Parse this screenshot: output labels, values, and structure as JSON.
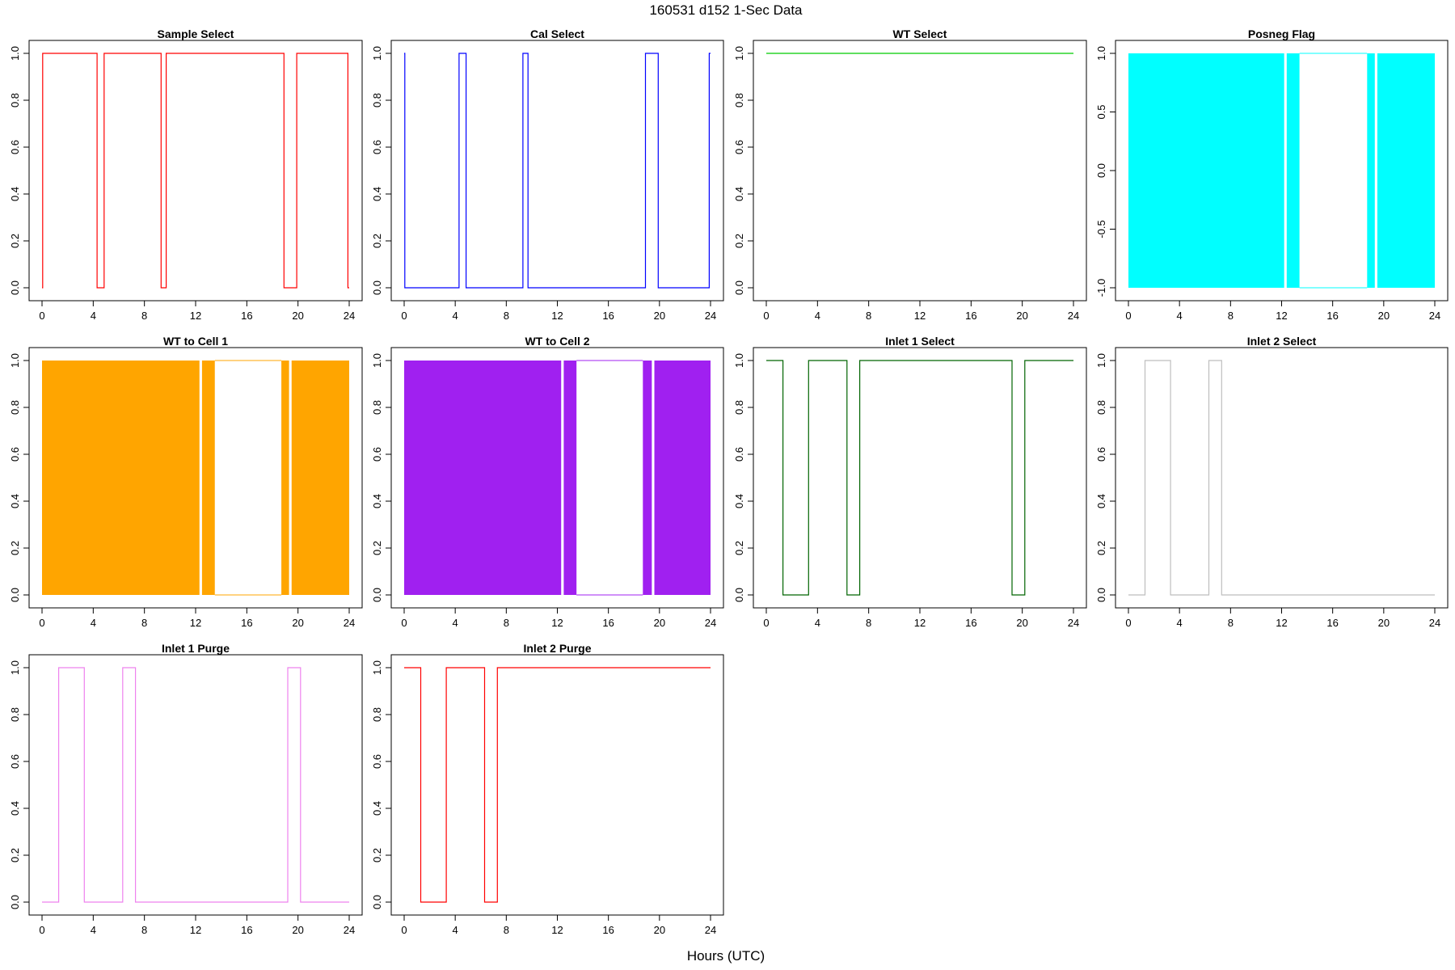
{
  "figure": {
    "title": "160531   d152   1-Sec Data",
    "xlabel": "Hours (UTC)"
  },
  "chart_data": [
    {
      "type": "line",
      "title": "Sample Select",
      "color": "#ff0000",
      "xlim": [
        0,
        24
      ],
      "ylim": [
        0,
        1
      ],
      "xticks": [
        0,
        4,
        8,
        12,
        16,
        20,
        24
      ],
      "yticks": [
        0,
        0.2,
        0.4,
        0.6,
        0.8,
        1
      ],
      "ytick_labels": [
        "0.0",
        "0.2",
        "0.4",
        "0.6",
        "0.8",
        "1.0"
      ],
      "steps": [
        [
          0,
          0
        ],
        [
          0.05,
          1
        ],
        [
          4.3,
          0
        ],
        [
          4.85,
          1
        ],
        [
          9.3,
          0
        ],
        [
          9.7,
          1
        ],
        [
          18.9,
          0
        ],
        [
          19.9,
          1
        ],
        [
          23.9,
          0
        ],
        [
          24,
          0
        ]
      ]
    },
    {
      "type": "line",
      "title": "Cal Select",
      "color": "#0000ff",
      "xlim": [
        0,
        24
      ],
      "ylim": [
        0,
        1
      ],
      "xticks": [
        0,
        4,
        8,
        12,
        16,
        20,
        24
      ],
      "yticks": [
        0,
        0.2,
        0.4,
        0.6,
        0.8,
        1
      ],
      "ytick_labels": [
        "0.0",
        "0.2",
        "0.4",
        "0.6",
        "0.8",
        "1.0"
      ],
      "steps": [
        [
          0,
          1
        ],
        [
          0.05,
          0
        ],
        [
          4.3,
          1
        ],
        [
          4.85,
          0
        ],
        [
          9.3,
          1
        ],
        [
          9.7,
          0
        ],
        [
          18.9,
          1
        ],
        [
          19.9,
          0
        ],
        [
          23.9,
          1
        ],
        [
          24,
          1
        ]
      ]
    },
    {
      "type": "line",
      "title": "WT Select",
      "color": "#00cc00",
      "xlim": [
        0,
        24
      ],
      "ylim": [
        0,
        1
      ],
      "xticks": [
        0,
        4,
        8,
        12,
        16,
        20,
        24
      ],
      "yticks": [
        0,
        0.2,
        0.4,
        0.6,
        0.8,
        1
      ],
      "ytick_labels": [
        "0.0",
        "0.2",
        "0.4",
        "0.6",
        "0.8",
        "1.0"
      ],
      "steps": [
        [
          0,
          1
        ],
        [
          24,
          1
        ]
      ]
    },
    {
      "type": "area",
      "title": "Posneg Flag",
      "color": "#00ffff",
      "xlim": [
        0,
        24
      ],
      "ylim": [
        -1,
        1
      ],
      "xticks": [
        0,
        4,
        8,
        12,
        16,
        20,
        24
      ],
      "yticks": [
        -1,
        -0.5,
        0,
        0.5,
        1
      ],
      "ytick_labels": [
        "-1.0",
        "-0.5",
        "0.0",
        "0.5",
        "1.0"
      ],
      "fill_low": -1,
      "fill_high": 1,
      "filled_ranges": [
        [
          0,
          12.2
        ],
        [
          12.4,
          13.4
        ],
        [
          18.7,
          19.3
        ],
        [
          19.5,
          24
        ]
      ],
      "gap_ranges": [
        [
          13.4,
          18.7
        ]
      ]
    },
    {
      "type": "area",
      "title": "WT to Cell 1",
      "color": "#ffa500",
      "xlim": [
        0,
        24
      ],
      "ylim": [
        0,
        1
      ],
      "xticks": [
        0,
        4,
        8,
        12,
        16,
        20,
        24
      ],
      "yticks": [
        0,
        0.2,
        0.4,
        0.6,
        0.8,
        1
      ],
      "ytick_labels": [
        "0.0",
        "0.2",
        "0.4",
        "0.6",
        "0.8",
        "1.0"
      ],
      "fill_low": 0,
      "fill_high": 1,
      "filled_ranges": [
        [
          0,
          12.3
        ],
        [
          12.5,
          13.5
        ],
        [
          18.7,
          19.3
        ],
        [
          19.5,
          24
        ]
      ],
      "gap_ranges": [
        [
          13.5,
          18.7
        ]
      ]
    },
    {
      "type": "area",
      "title": "WT to Cell 2",
      "color": "#a020f0",
      "xlim": [
        0,
        24
      ],
      "ylim": [
        0,
        1
      ],
      "xticks": [
        0,
        4,
        8,
        12,
        16,
        20,
        24
      ],
      "yticks": [
        0,
        0.2,
        0.4,
        0.6,
        0.8,
        1
      ],
      "ytick_labels": [
        "0.0",
        "0.2",
        "0.4",
        "0.6",
        "0.8",
        "1.0"
      ],
      "fill_low": 0,
      "fill_high": 1,
      "filled_ranges": [
        [
          0,
          12.3
        ],
        [
          12.5,
          13.5
        ],
        [
          18.7,
          19.4
        ],
        [
          19.6,
          24
        ]
      ],
      "gap_ranges": [
        [
          13.5,
          18.7
        ]
      ]
    },
    {
      "type": "line",
      "title": "Inlet 1 Select",
      "color": "#006400",
      "xlim": [
        0,
        24
      ],
      "ylim": [
        0,
        1
      ],
      "xticks": [
        0,
        4,
        8,
        12,
        16,
        20,
        24
      ],
      "yticks": [
        0,
        0.2,
        0.4,
        0.6,
        0.8,
        1
      ],
      "ytick_labels": [
        "0.0",
        "0.2",
        "0.4",
        "0.6",
        "0.8",
        "1.0"
      ],
      "steps": [
        [
          0,
          1
        ],
        [
          1.3,
          0
        ],
        [
          3.3,
          1
        ],
        [
          6.3,
          0
        ],
        [
          7.3,
          1
        ],
        [
          19.2,
          0
        ],
        [
          20.2,
          1
        ],
        [
          24,
          1
        ]
      ]
    },
    {
      "type": "line",
      "title": "Inlet 2 Select",
      "color": "#bebebe",
      "xlim": [
        0,
        24
      ],
      "ylim": [
        0,
        1
      ],
      "xticks": [
        0,
        4,
        8,
        12,
        16,
        20,
        24
      ],
      "yticks": [
        0,
        0.2,
        0.4,
        0.6,
        0.8,
        1
      ],
      "ytick_labels": [
        "0.0",
        "0.2",
        "0.4",
        "0.6",
        "0.8",
        "1.0"
      ],
      "steps": [
        [
          0,
          0
        ],
        [
          1.3,
          1
        ],
        [
          3.3,
          0
        ],
        [
          6.3,
          1
        ],
        [
          7.3,
          0
        ],
        [
          24,
          0
        ]
      ]
    },
    {
      "type": "line",
      "title": "Inlet 1 Purge",
      "color": "#ee82ee",
      "xlim": [
        0,
        24
      ],
      "ylim": [
        0,
        1
      ],
      "xticks": [
        0,
        4,
        8,
        12,
        16,
        20,
        24
      ],
      "yticks": [
        0,
        0.2,
        0.4,
        0.6,
        0.8,
        1
      ],
      "ytick_labels": [
        "0.0",
        "0.2",
        "0.4",
        "0.6",
        "0.8",
        "1.0"
      ],
      "steps": [
        [
          0,
          0
        ],
        [
          1.3,
          1
        ],
        [
          3.3,
          0
        ],
        [
          6.3,
          1
        ],
        [
          7.3,
          0
        ],
        [
          19.2,
          1
        ],
        [
          20.2,
          0
        ],
        [
          24,
          0
        ]
      ]
    },
    {
      "type": "line",
      "title": "Inlet 2 Purge",
      "color": "#ff0000",
      "xlim": [
        0,
        24
      ],
      "ylim": [
        0,
        1
      ],
      "xticks": [
        0,
        4,
        8,
        12,
        16,
        20,
        24
      ],
      "yticks": [
        0,
        0.2,
        0.4,
        0.6,
        0.8,
        1
      ],
      "ytick_labels": [
        "0.0",
        "0.2",
        "0.4",
        "0.6",
        "0.8",
        "1.0"
      ],
      "steps": [
        [
          0,
          1
        ],
        [
          1.3,
          0
        ],
        [
          3.3,
          1
        ],
        [
          6.3,
          0
        ],
        [
          7.3,
          1
        ],
        [
          24,
          1
        ]
      ]
    }
  ]
}
